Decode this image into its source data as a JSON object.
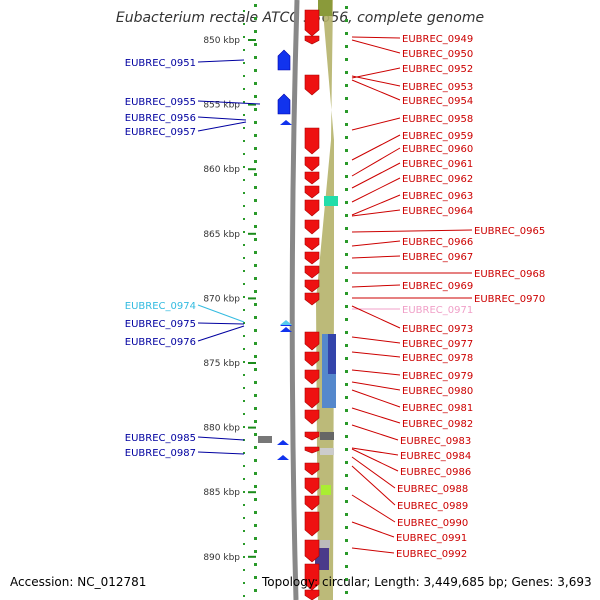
{
  "title": "Eubacterium rectale ATCC 33656, complete genome",
  "accession": "Accession: NC_012781",
  "topology": "Topology: circular; Length: 3,449,685 bp; Genes: 3,693",
  "ticks": [
    "850 kbp",
    "855 kbp",
    "860 kbp",
    "865 kbp",
    "870 kbp",
    "875 kbp",
    "880 kbp",
    "885 kbp",
    "890 kbp"
  ],
  "left_labels": [
    {
      "text": "EUBREC_0951",
      "color": "#0000a0"
    },
    {
      "text": "EUBREC_0955",
      "color": "#0000a0"
    },
    {
      "text": "EUBREC_0956",
      "color": "#0000a0"
    },
    {
      "text": "EUBREC_0957",
      "color": "#0000a0"
    },
    {
      "text": "EUBREC_0974",
      "color": "#33bbe0"
    },
    {
      "text": "EUBREC_0975",
      "color": "#0000a0"
    },
    {
      "text": "EUBREC_0976",
      "color": "#0000a0"
    },
    {
      "text": "EUBREC_0985",
      "color": "#0000a0"
    },
    {
      "text": "EUBREC_0987",
      "color": "#0000a0"
    }
  ],
  "right_labels": [
    {
      "text": "EUBREC_0949",
      "color": "#cc0000"
    },
    {
      "text": "EUBREC_0950",
      "color": "#cc0000"
    },
    {
      "text": "EUBREC_0952",
      "color": "#cc0000"
    },
    {
      "text": "EUBREC_0953",
      "color": "#cc0000"
    },
    {
      "text": "EUBREC_0954",
      "color": "#cc0000"
    },
    {
      "text": "EUBREC_0958",
      "color": "#cc0000"
    },
    {
      "text": "EUBREC_0959",
      "color": "#cc0000"
    },
    {
      "text": "EUBREC_0960",
      "color": "#cc0000"
    },
    {
      "text": "EUBREC_0961",
      "color": "#cc0000"
    },
    {
      "text": "EUBREC_0962",
      "color": "#cc0000"
    },
    {
      "text": "EUBREC_0963",
      "color": "#cc0000"
    },
    {
      "text": "EUBREC_0964",
      "color": "#cc0000"
    },
    {
      "text": "EUBREC_0965",
      "color": "#cc0000"
    },
    {
      "text": "EUBREC_0966",
      "color": "#cc0000"
    },
    {
      "text": "EUBREC_0967",
      "color": "#cc0000"
    },
    {
      "text": "EUBREC_0968",
      "color": "#cc0000"
    },
    {
      "text": "EUBREC_0969",
      "color": "#cc0000"
    },
    {
      "text": "EUBREC_0970",
      "color": "#cc0000"
    },
    {
      "text": "EUBREC_0971",
      "color": "#f0a0c8"
    },
    {
      "text": "EUBREC_0973",
      "color": "#cc0000"
    },
    {
      "text": "EUBREC_0977",
      "color": "#cc0000"
    },
    {
      "text": "EUBREC_0978",
      "color": "#cc0000"
    },
    {
      "text": "EUBREC_0979",
      "color": "#cc0000"
    },
    {
      "text": "EUBREC_0980",
      "color": "#cc0000"
    },
    {
      "text": "EUBREC_0981",
      "color": "#cc0000"
    },
    {
      "text": "EUBREC_0982",
      "color": "#cc0000"
    },
    {
      "text": "EUBREC_0983",
      "color": "#cc0000"
    },
    {
      "text": "EUBREC_0984",
      "color": "#cc0000"
    },
    {
      "text": "EUBREC_0986",
      "color": "#cc0000"
    },
    {
      "text": "EUBREC_0988",
      "color": "#cc0000"
    },
    {
      "text": "EUBREC_0989",
      "color": "#cc0000"
    },
    {
      "text": "EUBREC_0990",
      "color": "#cc0000"
    },
    {
      "text": "EUBREC_0991",
      "color": "#cc0000"
    },
    {
      "text": "EUBREC_0992",
      "color": "#cc0000"
    }
  ]
}
